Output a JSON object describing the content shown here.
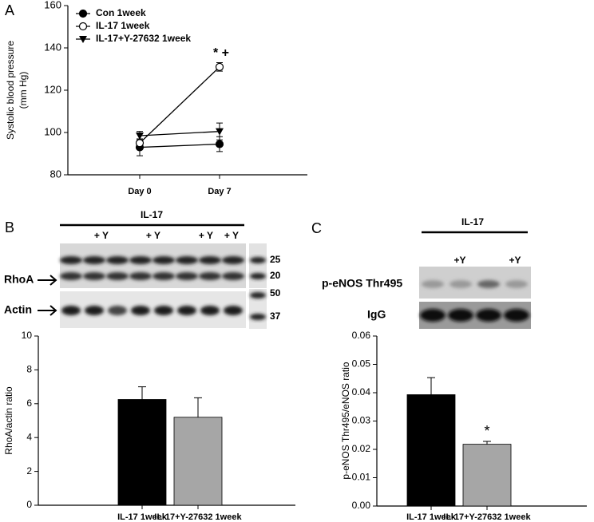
{
  "chart_data": [
    {
      "type": "line",
      "y_label": [
        "Systolic blood pressure",
        "(mm Hg)"
      ],
      "categories": [
        "Day 0",
        "Day 7"
      ],
      "series": [
        {
          "name": "Con 1week",
          "color": "#000000",
          "marker": "filled-circle",
          "values": [
            93,
            94.5
          ],
          "errors": [
            4,
            3.5
          ]
        },
        {
          "name": "IL-17 1week",
          "color": "#000000",
          "marker": "open-circle",
          "values": [
            95,
            131
          ],
          "errors": [
            2,
            2
          ]
        },
        {
          "name": "IL-17+Y-27632 1week",
          "color": "#000000",
          "marker": "filled-triangle-down",
          "values": [
            98.5,
            100.5
          ],
          "errors": [
            2,
            4
          ]
        }
      ],
      "annotation": "* +",
      "ylim": [
        80,
        160
      ],
      "yticks": [
        80,
        100,
        120,
        140,
        160
      ]
    },
    {
      "type": "bar",
      "y_label": "RhoA/actin ratio",
      "categories": [
        "IL-17 1week",
        "IL-17+Y-27632 1week"
      ],
      "values": [
        6.25,
        5.2
      ],
      "errors": [
        0.75,
        1.15
      ],
      "colors": [
        "#000000",
        "#a6a6a6"
      ],
      "ylim": [
        0,
        10
      ],
      "yticks": [
        0,
        2,
        4,
        6,
        8,
        10
      ]
    },
    {
      "type": "bar",
      "y_label": "p-eNOS Thr495/eNOS ratio",
      "categories": [
        "IL-17 1week",
        "IL-17+Y-27632 1week"
      ],
      "values": [
        0.0393,
        0.0218
      ],
      "errors": [
        0.006,
        0.001
      ],
      "colors": [
        "#000000",
        "#a6a6a6"
      ],
      "annotation": "*",
      "ylim": [
        0,
        0.06
      ],
      "yticks": [
        {
          "value": 0,
          "label": "0.00"
        },
        {
          "value": 0.01,
          "label": "0.01"
        },
        {
          "value": 0.02,
          "label": "0.02"
        },
        {
          "value": 0.03,
          "label": "0.03"
        },
        {
          "value": 0.04,
          "label": "0.04"
        },
        {
          "value": 0.05,
          "label": "0.05"
        },
        {
          "value": 0.06,
          "label": "0.06"
        }
      ]
    }
  ],
  "figure": {
    "panel_labels": [
      "A",
      "B",
      "C"
    ],
    "blot_b": {
      "group": "IL-17",
      "treatments": [
        "+ Y",
        "+ Y",
        "+ Y",
        "+ Y"
      ],
      "bands": [
        "RhoA",
        "Actin"
      ],
      "markers": [
        25,
        20,
        50,
        37
      ]
    },
    "blot_c": {
      "group": "IL-17",
      "treatments": [
        "+Y",
        "+Y"
      ],
      "bands": [
        "p-eNOS Thr495",
        "IgG"
      ]
    }
  }
}
